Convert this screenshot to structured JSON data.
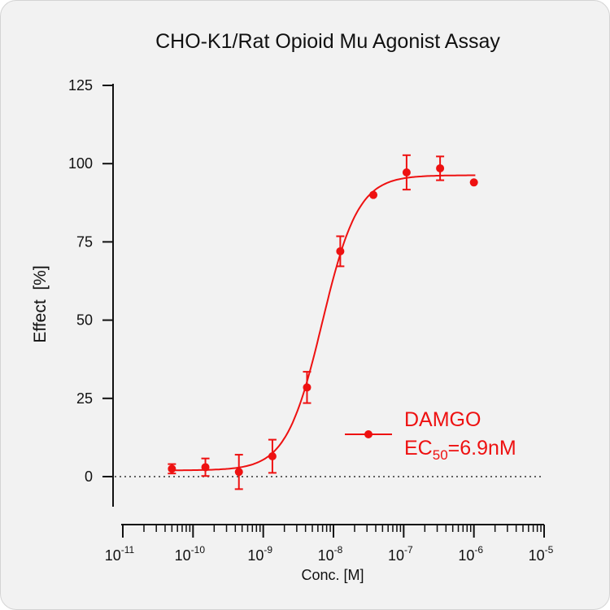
{
  "chart_data": {
    "type": "scatter",
    "title": "CHO-K1/Rat Opioid Mu Agonist Assay",
    "xlabel": "Conc. [M]",
    "ylabel": "Effect  [%]",
    "x_scale": "log10",
    "xlim": [
      1e-11,
      1e-05
    ],
    "ylim": [
      -10,
      125
    ],
    "x_ticks": [
      {
        "base": "10",
        "exp": "-11"
      },
      {
        "base": "10",
        "exp": "-10"
      },
      {
        "base": "10",
        "exp": "-9"
      },
      {
        "base": "10",
        "exp": "-8"
      },
      {
        "base": "10",
        "exp": "-7"
      },
      {
        "base": "10",
        "exp": "-6"
      },
      {
        "base": "10",
        "exp": "-5"
      }
    ],
    "y_ticks": [
      "0",
      "25",
      "50",
      "75",
      "100",
      "125"
    ],
    "reference_line": {
      "y": 0,
      "style": "dotted"
    },
    "series": [
      {
        "name": "DAMGO",
        "color": "#ee1111",
        "points": [
          {
            "x": 5e-11,
            "y": 2.5,
            "err": 1.5
          },
          {
            "x": 1.5e-10,
            "y": 3.0,
            "err": 2.8
          },
          {
            "x": 4.5e-10,
            "y": 1.5,
            "err": 5.5
          },
          {
            "x": 1.35e-09,
            "y": 6.5,
            "err": 5.3
          },
          {
            "x": 4.2e-09,
            "y": 28.5,
            "err": 5.0
          },
          {
            "x": 1.25e-08,
            "y": 72.0,
            "err": 4.8
          },
          {
            "x": 3.7e-08,
            "y": 90.0,
            "err": 0
          },
          {
            "x": 1.1e-07,
            "y": 97.2,
            "err": 5.5
          },
          {
            "x": 3.3e-07,
            "y": 98.5,
            "err": 3.8
          },
          {
            "x": 1e-06,
            "y": 94.0,
            "err": 0
          }
        ],
        "fit": {
          "model": "4PL",
          "bottom": 2,
          "top": 96.3,
          "ec50": 6.9e-09,
          "hill": 1.7
        }
      }
    ],
    "legend": {
      "position": "bottom-right",
      "label": "DAMGO",
      "ec_prefix": "EC",
      "ec_sub": "50",
      "ec_value": "=6.9nM"
    }
  }
}
